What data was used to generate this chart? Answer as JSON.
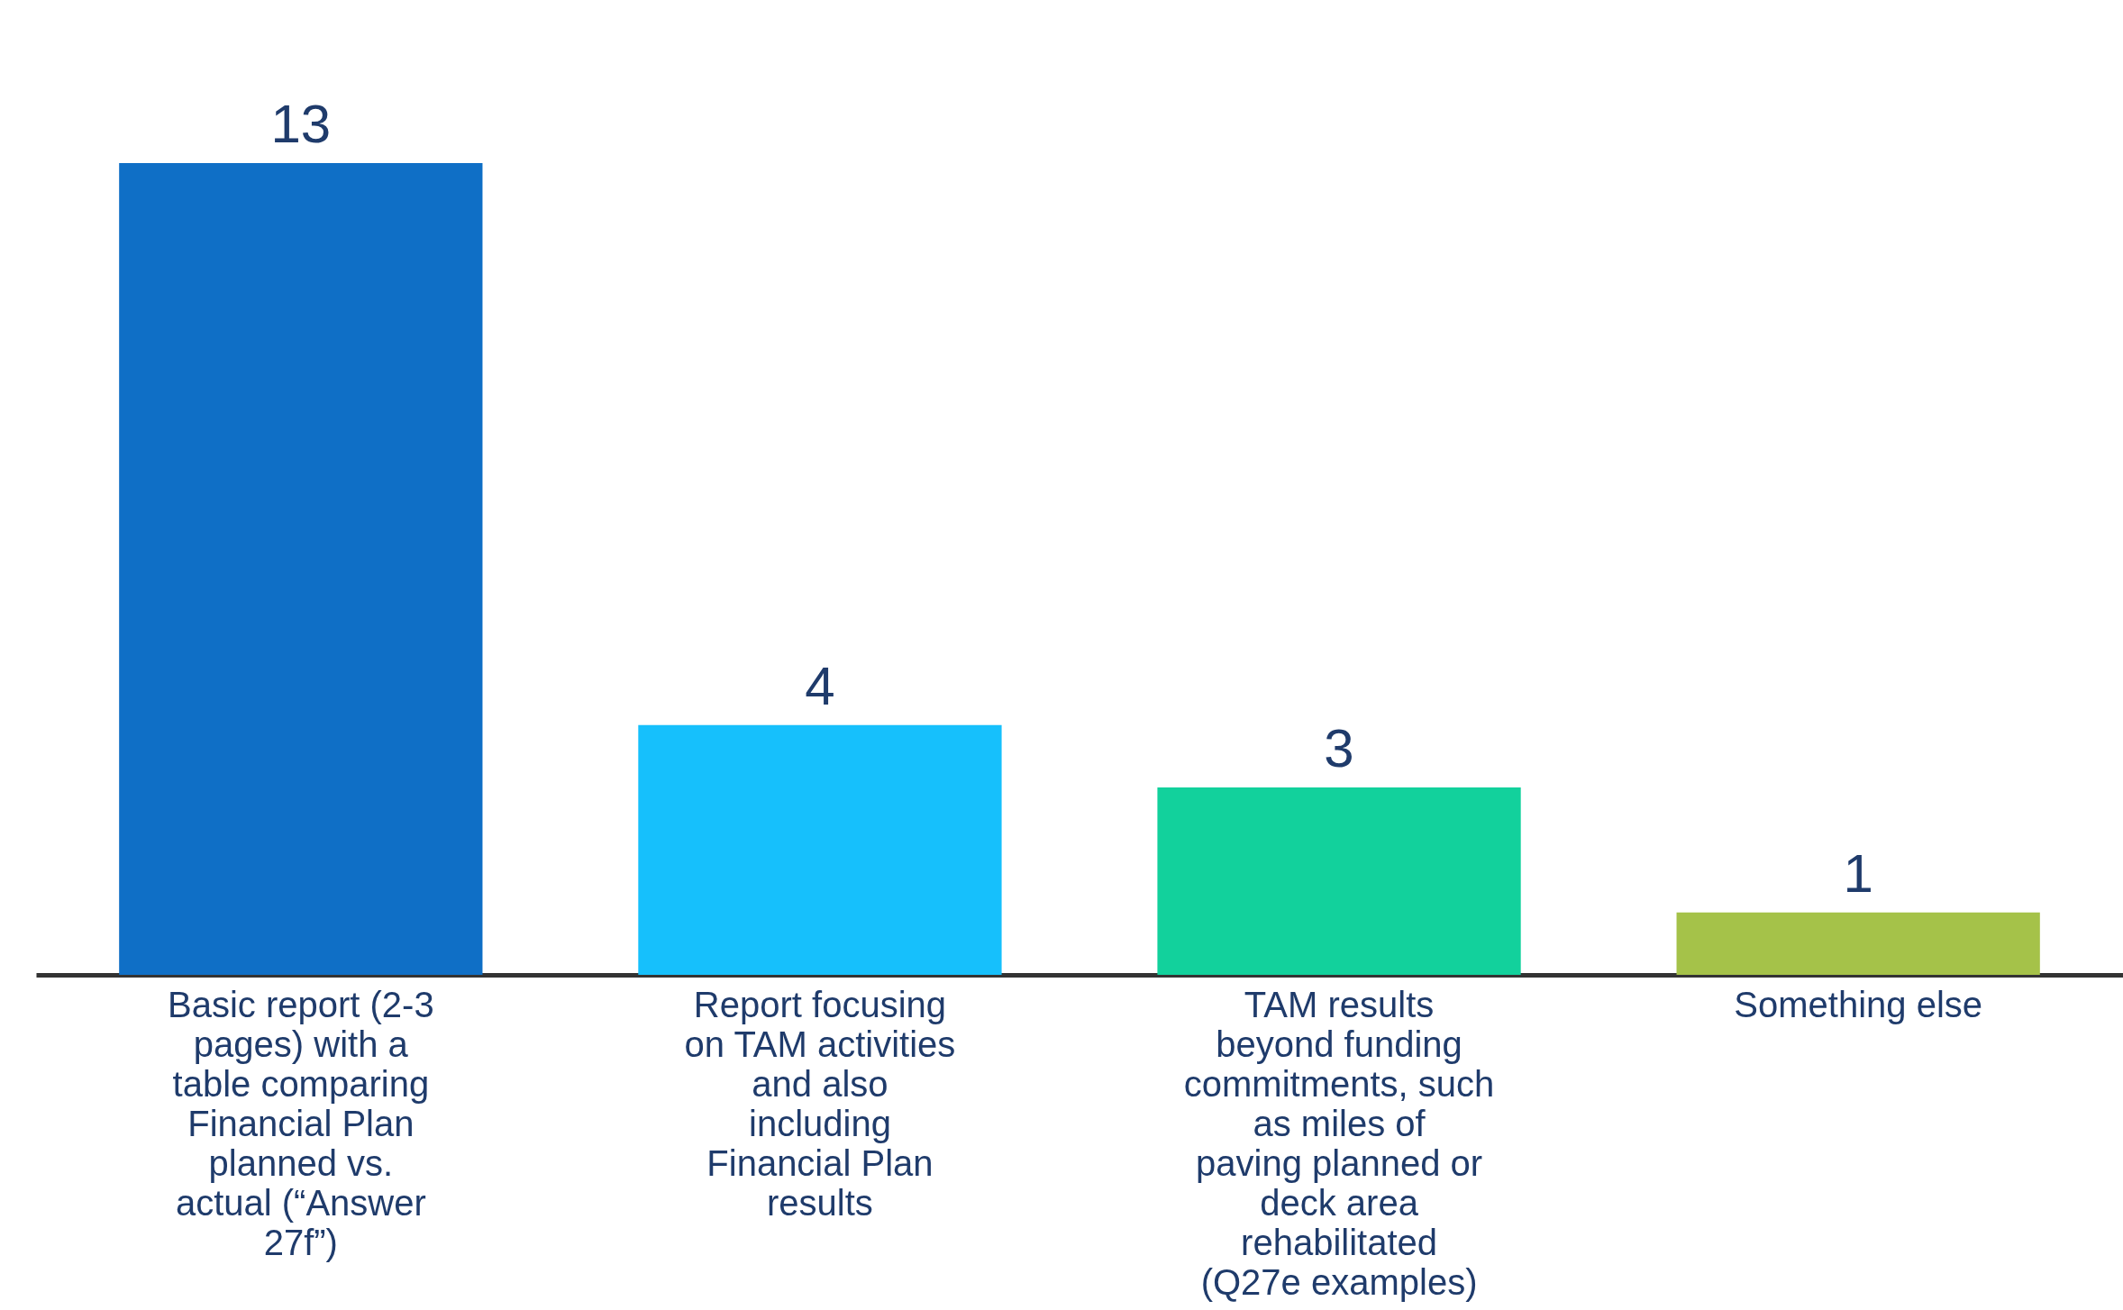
{
  "chart_data": {
    "type": "bar",
    "categories": [
      "Basic report (2-3 pages) with a table comparing Financial Plan planned vs. actual (“Answer 27f”)",
      "Report focusing on TAM activities and also including Financial Plan results",
      "TAM results beyond funding commitments, such as miles of paving planned or deck area rehabilitated (Q27e examples)",
      "Something else"
    ],
    "values": [
      13,
      4,
      3,
      1
    ],
    "colors": [
      "#0f6fc6",
      "#16c0fc",
      "#12d19c",
      "#a5c249"
    ],
    "data_labels": true
  }
}
